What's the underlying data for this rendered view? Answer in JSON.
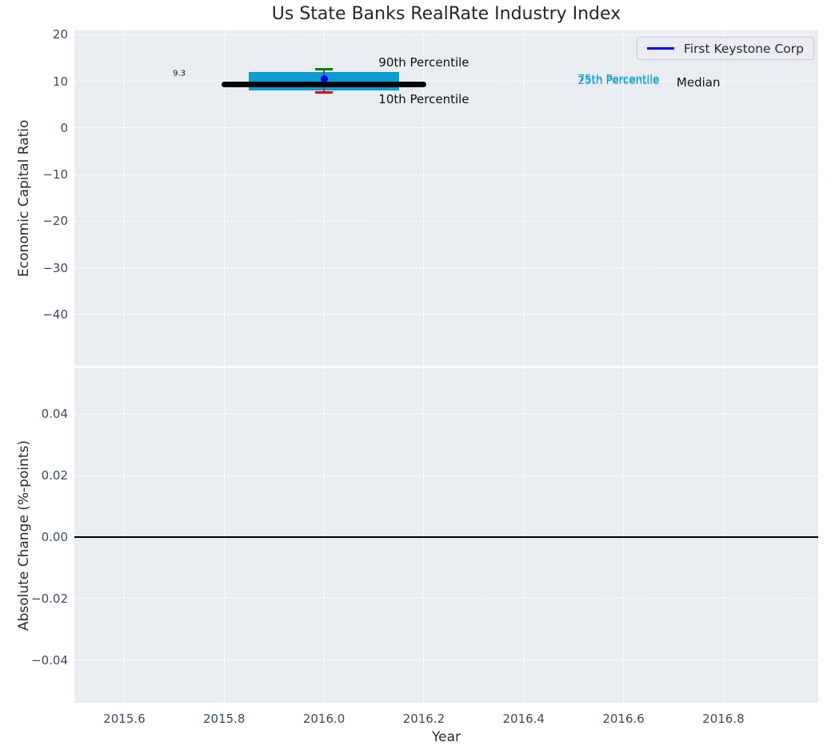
{
  "figure": {
    "title": "Us State Banks RealRate Industry Index"
  },
  "colors": {
    "axes_background": "#e9edf1",
    "grid": "#ffffff",
    "tick_label": "#3d4b61",
    "axis_label": "#2b2b2b",
    "title": "#262626",
    "box_fill": "#0b9dd1",
    "median_line": "#000000",
    "company_series": "#0000ff",
    "p90_cap": "#008000",
    "p10_cap": "#e8000b",
    "whisker": "#555555",
    "zero_line": "#000000",
    "legend_background": "#eaebf3",
    "legend_border": "#c9cad6",
    "annotation_dark": "#111111"
  },
  "legend": {
    "entries": [
      {
        "label": "First Keystone Corp",
        "color_key": "company_series"
      }
    ]
  },
  "chart_data": [
    {
      "type": "box",
      "title": "Us State Banks RealRate Industry Index",
      "ylabel": "Economic Capital Ratio",
      "xlim": [
        2015.5,
        2016.99
      ],
      "ylim": [
        -51,
        20.9
      ],
      "grid": true,
      "legend_position": "upper right",
      "yticks": {
        "values": [
          20,
          10,
          0,
          -10,
          -20,
          -30,
          -40
        ],
        "labels": [
          "20",
          "10",
          "0",
          "−10",
          "−20",
          "−30",
          "−40"
        ]
      },
      "xticks": {
        "values": [
          2015.6,
          2015.8,
          2016.0,
          2016.2,
          2016.4,
          2016.6,
          2016.8
        ],
        "labels": []
      },
      "industry_distribution": {
        "x": 2016.0,
        "p10": 7.6,
        "p25": 8.1,
        "median": 9.3,
        "p75": 11.9,
        "p90": 12.5,
        "box_half_width": 0.151,
        "median_half_width": 0.205,
        "cap_half_width": 0.018
      },
      "company_point": {
        "name": "First Keystone Corp",
        "x": 2016.0,
        "y": 10.6
      },
      "annotations": [
        {
          "id": "median-value-label",
          "text": "9.3",
          "x": 2015.71,
          "y": 11.6,
          "size": 10,
          "color_key": "annotation_dark"
        },
        {
          "id": "p90-label",
          "text": "90th Percentile",
          "x": 2016.2,
          "y": 14.0,
          "size": 15,
          "color_key": "annotation_dark"
        },
        {
          "id": "p10-label",
          "text": "10th Percentile",
          "x": 2016.2,
          "y": 6.1,
          "size": 15,
          "color_key": "annotation_dark"
        },
        {
          "id": "p75-label",
          "text": "75th Percentile",
          "x": 2016.59,
          "y": 10.45,
          "size": 13.5,
          "color_key": "box_fill"
        },
        {
          "id": "p25-label",
          "text": "25th Percentile",
          "x": 2016.59,
          "y": 10.15,
          "size": 13.5,
          "color_key": "box_fill"
        },
        {
          "id": "median-label",
          "text": "Median",
          "x": 2016.75,
          "y": 9.7,
          "size": 15,
          "color_key": "annotation_dark"
        }
      ]
    },
    {
      "type": "line",
      "ylabel": "Absolute Change (%-points)",
      "xlabel": "Year",
      "xlim": [
        2015.5,
        2016.99
      ],
      "ylim": [
        -0.0539,
        0.0549
      ],
      "grid": true,
      "yticks": {
        "values": [
          0.04,
          0.02,
          0,
          -0.02,
          -0.04
        ],
        "labels": [
          "0.04",
          "0.02",
          "0.00",
          "−0.02",
          "−0.04"
        ]
      },
      "xticks": {
        "values": [
          2015.6,
          2015.8,
          2016.0,
          2016.2,
          2016.4,
          2016.6,
          2016.8
        ],
        "labels": [
          "2015.6",
          "2015.8",
          "2016.0",
          "2016.2",
          "2016.4",
          "2016.6",
          "2016.8"
        ]
      },
      "series": [
        {
          "name": "zero-line",
          "y": 0.0,
          "style": "horizontal-line",
          "color_key": "zero_line"
        }
      ]
    }
  ]
}
